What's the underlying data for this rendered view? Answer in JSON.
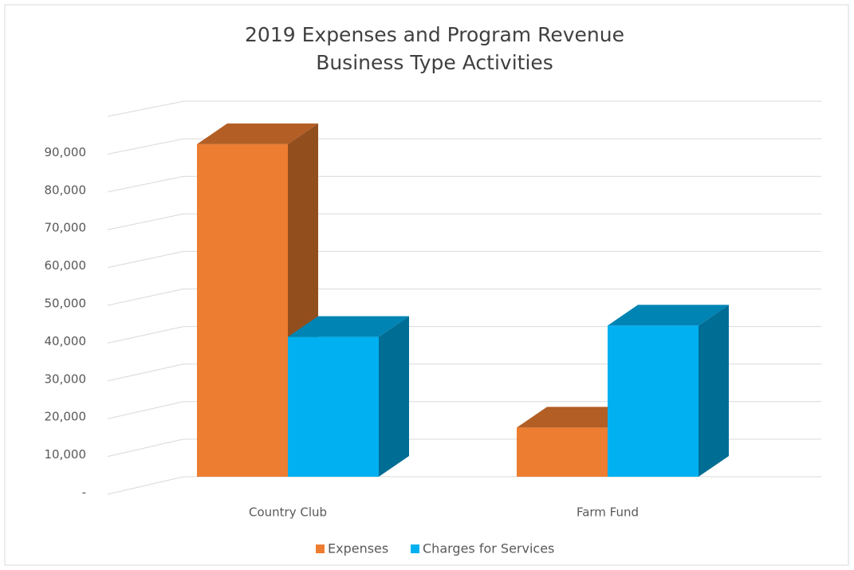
{
  "chart_data": {
    "type": "bar3d",
    "title": "2019 Expenses and Program Revenue",
    "subtitle": "Business Type Activities",
    "categories": [
      "Country Club",
      "Farm Fund"
    ],
    "series": [
      {
        "name": "Expenses",
        "color": "#ed7d31",
        "values": [
          88000,
          13000
        ]
      },
      {
        "name": "Charges for Services",
        "color": "#00b0f0",
        "values": [
          37000,
          40000
        ]
      }
    ],
    "ylim": [
      0,
      100000
    ],
    "yticks": [
      {
        "value": 0,
        "label": "-"
      },
      {
        "value": 10000,
        "label": "10,000"
      },
      {
        "value": 20000,
        "label": "20,000"
      },
      {
        "value": 30000,
        "label": "30,000"
      },
      {
        "value": 40000,
        "label": "40,000"
      },
      {
        "value": 50000,
        "label": "50,000"
      },
      {
        "value": 60000,
        "label": "60,000"
      },
      {
        "value": 70000,
        "label": "70,000"
      },
      {
        "value": 80000,
        "label": "80,000"
      },
      {
        "value": 90000,
        "label": "90,000"
      }
    ],
    "grid": true
  }
}
